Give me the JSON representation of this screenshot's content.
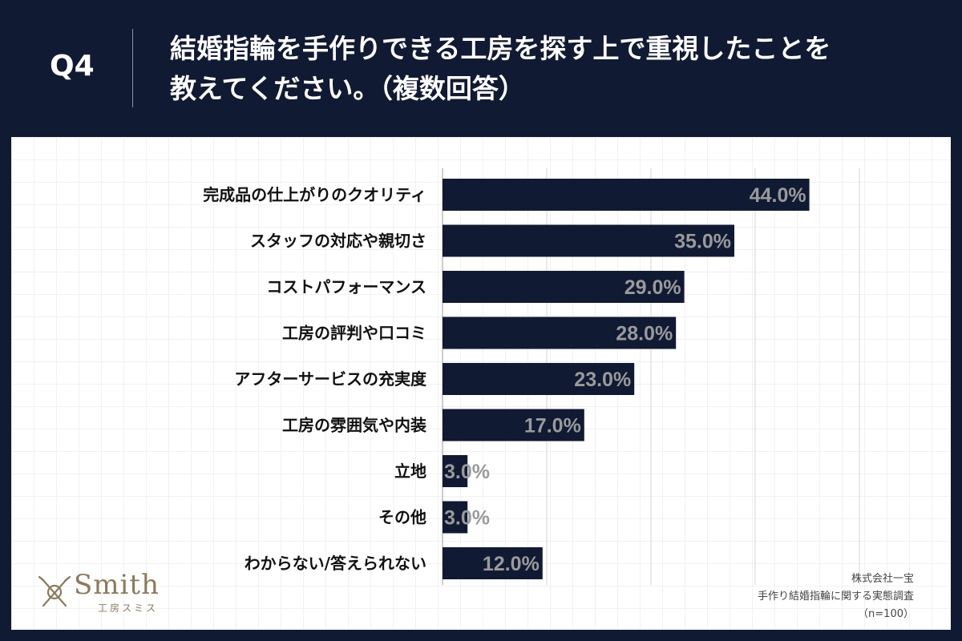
{
  "header": {
    "q_number": "Q4",
    "title_line1": "結婚指輪を手作りできる工房を探す上で重視したことを",
    "title_line2": "教えてください。（複数回答）"
  },
  "colors": {
    "background": "#111a33",
    "bar": "#111a33",
    "value_text": "#9a9a9a",
    "logo": "#8c7a5c"
  },
  "chart_data": {
    "type": "bar",
    "orientation": "horizontal",
    "title": "結婚指輪を手作りできる工房を探す上で重視したことを教えてください。（複数回答）",
    "categories": [
      "完成品の仕上がりのクオリティ",
      "スタッフの対応や親切さ",
      "コストパフォーマンス",
      "工房の評判や口コミ",
      "アフターサービスの充実度",
      "工房の雰囲気や内装",
      "立地",
      "その他",
      "わからない/答えられない"
    ],
    "values": [
      44.0,
      35.0,
      29.0,
      28.0,
      23.0,
      17.0,
      3.0,
      3.0,
      12.0
    ],
    "value_labels": [
      "44.0%",
      "35.0%",
      "29.0%",
      "28.0%",
      "23.0%",
      "17.0%",
      "3.0%",
      "3.0%",
      "12.0%"
    ],
    "xlim": [
      0,
      50
    ],
    "gridlines": [
      0,
      12.5,
      25,
      37.5,
      50
    ],
    "grid": true,
    "unit": "%"
  },
  "logo": {
    "name": "Smith",
    "sub": "工房スミス"
  },
  "source": {
    "line1": "株式会社一宝",
    "line2": "手作り結婚指輪に関する実態調査",
    "line3": "（n=100）"
  }
}
